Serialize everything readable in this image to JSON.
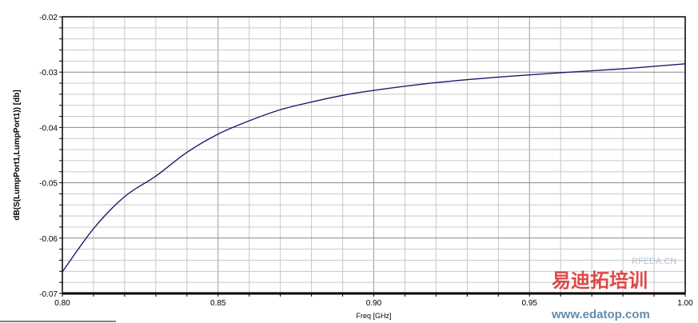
{
  "chart_data": {
    "type": "line",
    "title": "",
    "xlabel": "Freq [GHz]",
    "ylabel": "dB(S(LumpPort1,LumpPort1)) [db]",
    "xlim": [
      0.8,
      1.0
    ],
    "ylim": [
      -0.07,
      -0.02
    ],
    "xticks": [
      "0.80",
      "0.85",
      "0.90",
      "0.95",
      "1.00"
    ],
    "yticks": [
      "-0.02",
      "-0.03",
      "-0.04",
      "-0.05",
      "-0.06",
      "-0.07"
    ],
    "grid": true,
    "series": [
      {
        "color": "#1a1a6e",
        "x": [
          0.8,
          0.81,
          0.82,
          0.83,
          0.84,
          0.85,
          0.86,
          0.87,
          0.88,
          0.89,
          0.9,
          0.92,
          0.94,
          0.96,
          0.98,
          1.0
        ],
        "y": [
          -0.0661,
          -0.0583,
          -0.0525,
          -0.0488,
          -0.0445,
          -0.0412,
          -0.0388,
          -0.0368,
          -0.0354,
          -0.0342,
          -0.0333,
          -0.0319,
          -0.0309,
          -0.0301,
          -0.0294,
          -0.0285
        ]
      }
    ]
  },
  "watermark": {
    "cn": "易迪拓培训",
    "url": "www.edatop.com",
    "site": "RFEDA.CN"
  }
}
